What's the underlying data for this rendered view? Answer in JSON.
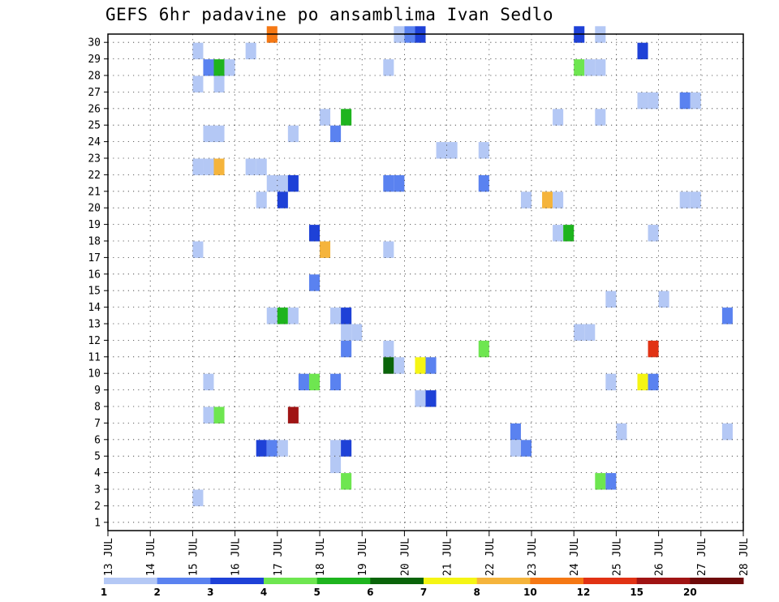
{
  "chart_data": {
    "type": "heatmap",
    "title": "GEFS 6hr padavine po ansamblima Ivan Sedlo",
    "x_tick_labels": [
      "13 JUL",
      "14 JUL",
      "15 JUL",
      "16 JUL",
      "17 JUL",
      "18 JUL",
      "19 JUL",
      "20 JUL",
      "21 JUL",
      "22 JUL",
      "23 JUL",
      "24 JUL",
      "25 JUL",
      "26 JUL",
      "27 JUL",
      "28 JUL"
    ],
    "x_range_days": [
      13,
      28
    ],
    "y_tick_labels": [
      "1",
      "2",
      "3",
      "4",
      "5",
      "6",
      "7",
      "8",
      "9",
      "10",
      "11",
      "12",
      "13",
      "14",
      "15",
      "16",
      "17",
      "18",
      "19",
      "20",
      "21",
      "22",
      "23",
      "24",
      "25",
      "26",
      "27",
      "28",
      "29",
      "30"
    ],
    "y_range": [
      0,
      30
    ],
    "cell_width_days": 0.25,
    "grid": true,
    "colorbar": {
      "boundary_labels": [
        "1",
        "2",
        "3",
        "4",
        "5",
        "6",
        "7",
        "8",
        "10",
        "12",
        "15",
        "20"
      ],
      "colors": [
        "#b4c8f5",
        "#5a82f0",
        "#1e41d7",
        "#6ee650",
        "#1eb41e",
        "#0a640a",
        "#f5f514",
        "#f5b43c",
        "#f57814",
        "#e13214",
        "#a01414",
        "#6e0a0a"
      ]
    },
    "cells": [
      {
        "day": 16.75,
        "member": 30,
        "level": 9
      },
      {
        "day": 19.75,
        "member": 30,
        "level": 1
      },
      {
        "day": 20.0,
        "member": 30,
        "level": 2
      },
      {
        "day": 20.25,
        "member": 30,
        "level": 3
      },
      {
        "day": 24.0,
        "member": 30,
        "level": 3
      },
      {
        "day": 24.5,
        "member": 30,
        "level": 1
      },
      {
        "day": 15.0,
        "member": 29,
        "level": 1
      },
      {
        "day": 16.25,
        "member": 29,
        "level": 1
      },
      {
        "day": 25.5,
        "member": 29,
        "level": 3
      },
      {
        "day": 15.25,
        "member": 28,
        "level": 2
      },
      {
        "day": 15.5,
        "member": 28,
        "level": 5
      },
      {
        "day": 15.75,
        "member": 28,
        "level": 1
      },
      {
        "day": 19.5,
        "member": 28,
        "level": 1
      },
      {
        "day": 24.0,
        "member": 28,
        "level": 4
      },
      {
        "day": 24.25,
        "member": 28,
        "level": 1
      },
      {
        "day": 24.5,
        "member": 28,
        "level": 1
      },
      {
        "day": 15.0,
        "member": 27,
        "level": 1
      },
      {
        "day": 15.5,
        "member": 27,
        "level": 1
      },
      {
        "day": 25.5,
        "member": 26,
        "level": 1
      },
      {
        "day": 25.75,
        "member": 26,
        "level": 1
      },
      {
        "day": 26.5,
        "member": 26,
        "level": 2
      },
      {
        "day": 26.75,
        "member": 26,
        "level": 1
      },
      {
        "day": 18.0,
        "member": 25,
        "level": 1
      },
      {
        "day": 18.5,
        "member": 25,
        "level": 5
      },
      {
        "day": 23.5,
        "member": 25,
        "level": 1
      },
      {
        "day": 24.5,
        "member": 25,
        "level": 1
      },
      {
        "day": 15.25,
        "member": 24,
        "level": 1
      },
      {
        "day": 15.5,
        "member": 24,
        "level": 1
      },
      {
        "day": 17.25,
        "member": 24,
        "level": 1
      },
      {
        "day": 18.25,
        "member": 24,
        "level": 2
      },
      {
        "day": 20.75,
        "member": 23,
        "level": 1
      },
      {
        "day": 21.0,
        "member": 23,
        "level": 1
      },
      {
        "day": 21.75,
        "member": 23,
        "level": 1
      },
      {
        "day": 15.0,
        "member": 22,
        "level": 1
      },
      {
        "day": 15.25,
        "member": 22,
        "level": 1
      },
      {
        "day": 15.5,
        "member": 22,
        "level": 8
      },
      {
        "day": 16.25,
        "member": 22,
        "level": 1
      },
      {
        "day": 16.5,
        "member": 22,
        "level": 1
      },
      {
        "day": 16.75,
        "member": 21,
        "level": 1
      },
      {
        "day": 17.0,
        "member": 21,
        "level": 1
      },
      {
        "day": 17.25,
        "member": 21,
        "level": 3
      },
      {
        "day": 19.5,
        "member": 21,
        "level": 2
      },
      {
        "day": 19.75,
        "member": 21,
        "level": 2
      },
      {
        "day": 21.75,
        "member": 21,
        "level": 2
      },
      {
        "day": 16.5,
        "member": 20,
        "level": 1
      },
      {
        "day": 17.0,
        "member": 20,
        "level": 3
      },
      {
        "day": 22.75,
        "member": 20,
        "level": 1
      },
      {
        "day": 23.25,
        "member": 20,
        "level": 8
      },
      {
        "day": 23.5,
        "member": 20,
        "level": 1
      },
      {
        "day": 26.5,
        "member": 20,
        "level": 1
      },
      {
        "day": 26.75,
        "member": 20,
        "level": 1
      },
      {
        "day": 17.75,
        "member": 18,
        "level": 3
      },
      {
        "day": 23.5,
        "member": 18,
        "level": 1
      },
      {
        "day": 23.75,
        "member": 18,
        "level": 5
      },
      {
        "day": 25.75,
        "member": 18,
        "level": 1
      },
      {
        "day": 15.0,
        "member": 17,
        "level": 1
      },
      {
        "day": 18.0,
        "member": 17,
        "level": 8
      },
      {
        "day": 19.5,
        "member": 17,
        "level": 1
      },
      {
        "day": 17.75,
        "member": 15,
        "level": 2
      },
      {
        "day": 24.75,
        "member": 14,
        "level": 1
      },
      {
        "day": 26.0,
        "member": 14,
        "level": 1
      },
      {
        "day": 16.75,
        "member": 13,
        "level": 1
      },
      {
        "day": 17.0,
        "member": 13,
        "level": 5
      },
      {
        "day": 17.25,
        "member": 13,
        "level": 1
      },
      {
        "day": 18.25,
        "member": 13,
        "level": 1
      },
      {
        "day": 18.5,
        "member": 13,
        "level": 3
      },
      {
        "day": 27.5,
        "member": 13,
        "level": 2
      },
      {
        "day": 18.5,
        "member": 12,
        "level": 1
      },
      {
        "day": 18.75,
        "member": 12,
        "level": 1
      },
      {
        "day": 24.0,
        "member": 12,
        "level": 1
      },
      {
        "day": 24.25,
        "member": 12,
        "level": 1
      },
      {
        "day": 18.5,
        "member": 11,
        "level": 2
      },
      {
        "day": 19.5,
        "member": 11,
        "level": 1
      },
      {
        "day": 21.75,
        "member": 11,
        "level": 4
      },
      {
        "day": 25.75,
        "member": 11,
        "level": 10
      },
      {
        "day": 19.5,
        "member": 10,
        "level": 6
      },
      {
        "day": 19.75,
        "member": 10,
        "level": 1
      },
      {
        "day": 20.25,
        "member": 10,
        "level": 7
      },
      {
        "day": 20.5,
        "member": 10,
        "level": 2
      },
      {
        "day": 15.25,
        "member": 9,
        "level": 1
      },
      {
        "day": 17.5,
        "member": 9,
        "level": 2
      },
      {
        "day": 17.75,
        "member": 9,
        "level": 4
      },
      {
        "day": 18.25,
        "member": 9,
        "level": 2
      },
      {
        "day": 24.75,
        "member": 9,
        "level": 1
      },
      {
        "day": 25.5,
        "member": 9,
        "level": 7
      },
      {
        "day": 25.75,
        "member": 9,
        "level": 2
      },
      {
        "day": 20.25,
        "member": 8,
        "level": 1
      },
      {
        "day": 20.5,
        "member": 8,
        "level": 3
      },
      {
        "day": 15.25,
        "member": 7,
        "level": 1
      },
      {
        "day": 15.5,
        "member": 7,
        "level": 4
      },
      {
        "day": 17.25,
        "member": 7,
        "level": 11
      },
      {
        "day": 22.5,
        "member": 6,
        "level": 2
      },
      {
        "day": 25.0,
        "member": 6,
        "level": 1
      },
      {
        "day": 27.5,
        "member": 6,
        "level": 1
      },
      {
        "day": 16.5,
        "member": 5,
        "level": 3
      },
      {
        "day": 16.75,
        "member": 5,
        "level": 2
      },
      {
        "day": 17.0,
        "member": 5,
        "level": 1
      },
      {
        "day": 18.25,
        "member": 5,
        "level": 1
      },
      {
        "day": 18.5,
        "member": 5,
        "level": 3
      },
      {
        "day": 22.5,
        "member": 5,
        "level": 1
      },
      {
        "day": 22.75,
        "member": 5,
        "level": 2
      },
      {
        "day": 18.25,
        "member": 4,
        "level": 1
      },
      {
        "day": 18.5,
        "member": 3,
        "level": 4
      },
      {
        "day": 24.5,
        "member": 3,
        "level": 4
      },
      {
        "day": 24.75,
        "member": 3,
        "level": 2
      },
      {
        "day": 15.0,
        "member": 2,
        "level": 1
      }
    ]
  }
}
